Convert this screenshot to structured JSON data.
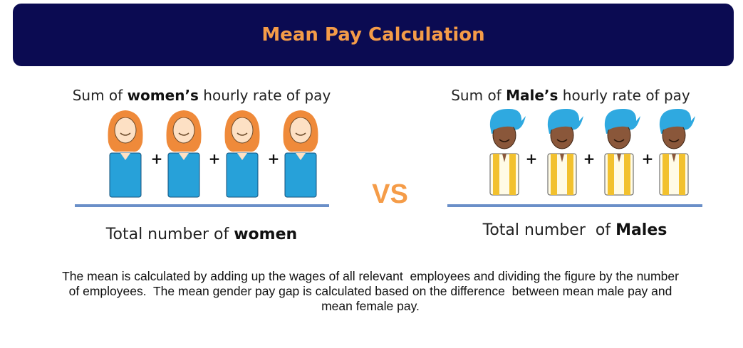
{
  "header": {
    "title": "Mean Pay Calculation"
  },
  "women": {
    "numerator": {
      "prefix": "Sum of ",
      "emphasis": "women’s",
      "suffix": " hourly rate of pay"
    },
    "operator": "+",
    "denominator": {
      "prefix": "Total number of ",
      "emphasis": "women"
    }
  },
  "versus": "VS",
  "men": {
    "numerator": {
      "prefix": "Sum of ",
      "emphasis": "Male’s",
      "suffix": " hourly rate of pay"
    },
    "operator": "+",
    "denominator": {
      "prefix": "Total number  of ",
      "emphasis": "Males"
    }
  },
  "description": "The mean is calculated by adding up the wages of all relevant  employees and dividing the figure by the number of employees.  The mean gender pay gap is calculated based on the difference  between mean male pay and mean female pay."
}
